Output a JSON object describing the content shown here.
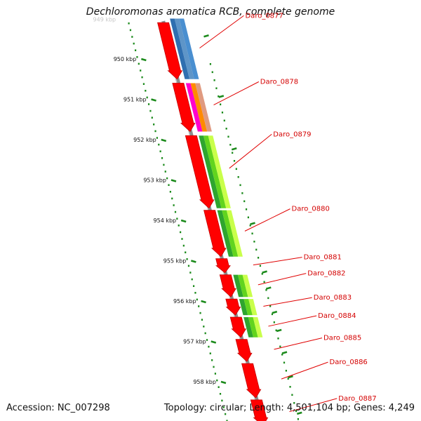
{
  "title": "Dechloromonas aromatica RCB, complete genome",
  "footer": {
    "accession": "Accession: NC_007298",
    "summary": "Topology: circular; Length: 4,501,104 bp; Genes: 4,249"
  },
  "colors": {
    "gene_red": "#ff0000",
    "gene_red_dark": "#c40000",
    "backbone": "#8c8c8c",
    "ruler": "#1b8a1b",
    "label": "#d40000",
    "label_line": "#e00000"
  },
  "ruler": {
    "labels": [
      "950 kbp",
      "951 kbp",
      "952 kbp",
      "953 kbp",
      "954 kbp",
      "955 kbp",
      "956 kbp",
      "957 kbp",
      "958 kbp"
    ],
    "faded_top_label": "949 kbp"
  },
  "genes": [
    {
      "label": "Daro_0877",
      "start_kbp": 949.1,
      "end_kbp": 950.5
    },
    {
      "label": "Daro_0878",
      "start_kbp": 950.6,
      "end_kbp": 951.8
    },
    {
      "label": "Daro_0879",
      "start_kbp": 951.9,
      "end_kbp": 953.7
    },
    {
      "label": "Daro_0880",
      "start_kbp": 953.75,
      "end_kbp": 954.9
    },
    {
      "label": "Daro_0881",
      "start_kbp": 954.95,
      "end_kbp": 955.3
    },
    {
      "label": "Daro_0882",
      "start_kbp": 955.35,
      "end_kbp": 955.9
    },
    {
      "label": "Daro_0883",
      "start_kbp": 955.95,
      "end_kbp": 956.35
    },
    {
      "label": "Daro_0884",
      "start_kbp": 956.4,
      "end_kbp": 956.9
    },
    {
      "label": "Daro_0885",
      "start_kbp": 956.95,
      "end_kbp": 957.5
    },
    {
      "label": "Daro_0886",
      "start_kbp": 957.55,
      "end_kbp": 958.4
    },
    {
      "label": "Daro_0887",
      "start_kbp": 958.45,
      "end_kbp": 959.1
    }
  ],
  "feature_bands": [
    {
      "start_kbp": 949.0,
      "end_kbp": 950.5,
      "colors": [
        "#2f6fb0",
        "#5e95c8",
        "#4a8fd0"
      ]
    },
    {
      "start_kbp": 950.6,
      "end_kbp": 951.8,
      "colors": [
        "#ff00cc",
        "#ff8a00",
        "#e09a80"
      ]
    },
    {
      "start_kbp": 951.9,
      "end_kbp": 953.7,
      "colors": [
        "#2ea52e",
        "#62d41e",
        "#c9ff4a"
      ]
    },
    {
      "start_kbp": 953.75,
      "end_kbp": 954.9,
      "colors": [
        "#2ea52e",
        "#62d41e",
        "#c9ff4a"
      ]
    },
    {
      "start_kbp": 955.35,
      "end_kbp": 955.9,
      "colors": [
        "#2ea52e",
        "#62d41e",
        "#c9ff4a"
      ]
    },
    {
      "start_kbp": 955.95,
      "end_kbp": 956.35,
      "colors": [
        "#2ea52e",
        "#62d41e",
        "#c9ff4a"
      ]
    },
    {
      "start_kbp": 956.4,
      "end_kbp": 956.9,
      "colors": [
        "#2ea52e",
        "#62d41e",
        "#c9ff4a"
      ]
    }
  ]
}
